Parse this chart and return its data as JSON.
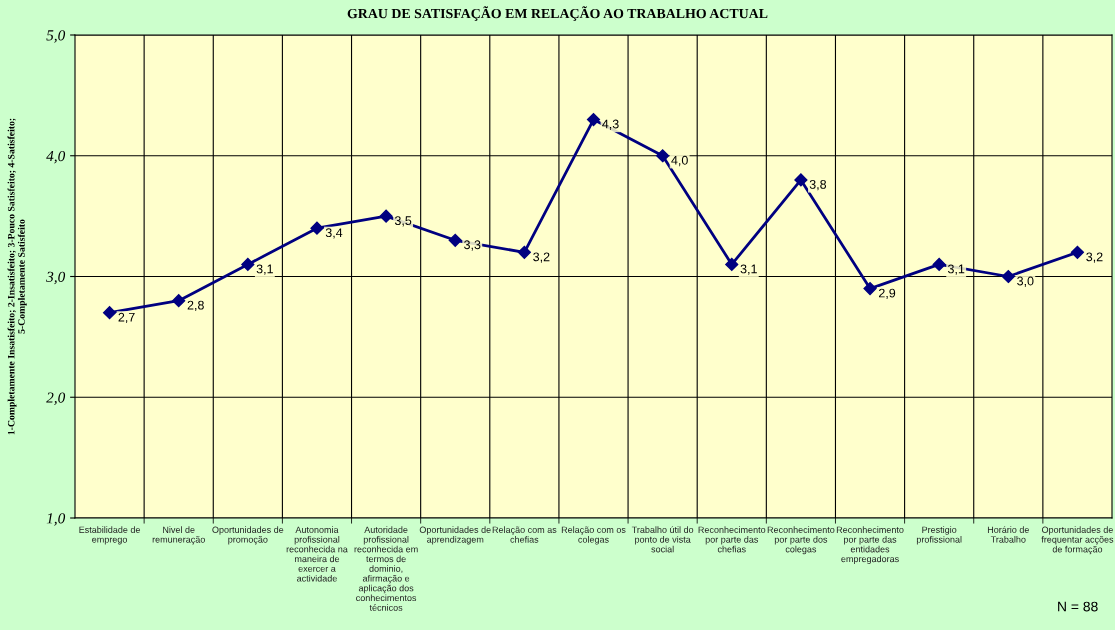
{
  "chart_data": {
    "type": "line",
    "title": "GRAU DE SATISFAÇÃO EM RELAÇÃO AO TRABALHO ACTUAL",
    "ylabel": "1-Completamente Insatisfeito; 2-Insatisfeito; 3-Pouco Satisfeito; 4-Satisfeito; 5-Completamente Satisfeito",
    "categories": [
      "Estabilidade de emprego",
      "Nivel de remuneração",
      "Oportunidades de promoção",
      "Autonomia profissional reconhecida na maneira de exercer a actividade",
      "Autoridade profissional reconhecida em termos de dominio, afirmação e aplicação dos conhecimentos técnicos",
      "Oportunidades de aprendizagem",
      "Relação com as chefias",
      "Relação com os colegas",
      "Trabalho útil do ponto de vista social",
      "Reconhecimento por parte das chefias",
      "Reconhecimento por parte dos colegas",
      "Reconhecimento por parte das entidades empregadoras",
      "Prestigio profissional",
      "Horário de Trabalho",
      "Oportunidades de frequentar acções de formação"
    ],
    "series": [
      {
        "color": "#000080",
        "values": [
          2.7,
          2.8,
          3.1,
          3.4,
          3.5,
          3.3,
          3.2,
          4.3,
          4.0,
          3.1,
          3.8,
          2.9,
          3.1,
          3.0,
          3.2
        ],
        "value_labels": [
          "2,7",
          "2,8",
          "3,1",
          "3,4",
          "3,5",
          "3,3",
          "3,2",
          "4,3",
          "4,0",
          "3,1",
          "3,8",
          "2,9",
          "3,1",
          "3,0",
          "3,2"
        ]
      }
    ],
    "ylim": [
      1,
      5
    ],
    "yticks": [
      {
        "value": 1,
        "label": "1,0"
      },
      {
        "value": 2,
        "label": "2,0"
      },
      {
        "value": 3,
        "label": "3,0"
      },
      {
        "value": 4,
        "label": "4,0"
      },
      {
        "value": 5,
        "label": "5,0"
      }
    ],
    "grid": true,
    "marker": "diamond",
    "line_style": "solid",
    "legend": false,
    "annotations": [
      "N = 88"
    ]
  }
}
